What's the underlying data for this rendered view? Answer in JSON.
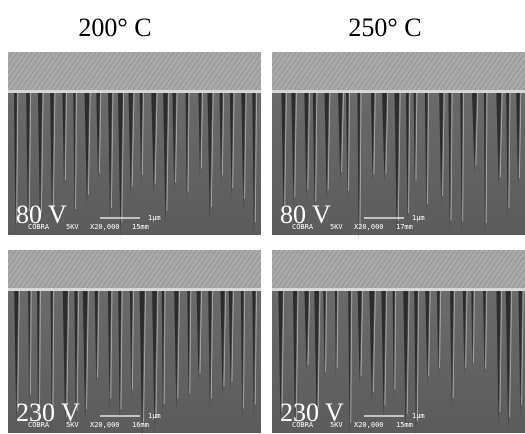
{
  "columns": [
    {
      "label": "200° C"
    },
    {
      "label": "250° C"
    }
  ],
  "panels": [
    {
      "voltage": "80 V",
      "scale": "1µm",
      "info": [
        "COBRA",
        "5KV",
        "X20,000",
        "15mm"
      ]
    },
    {
      "voltage": "80 V",
      "scale": "1µm",
      "info": [
        "COBRA",
        "5KV",
        "X20,000",
        "17mm"
      ]
    },
    {
      "voltage": "230 V",
      "scale": "1µm",
      "info": [
        "COBRA",
        "5KV",
        "X20,000",
        "16mm"
      ]
    },
    {
      "voltage": "230 V",
      "scale": "1µm",
      "info": [
        "COBRA",
        "5KV",
        "X20,000",
        "15mm"
      ]
    }
  ]
}
